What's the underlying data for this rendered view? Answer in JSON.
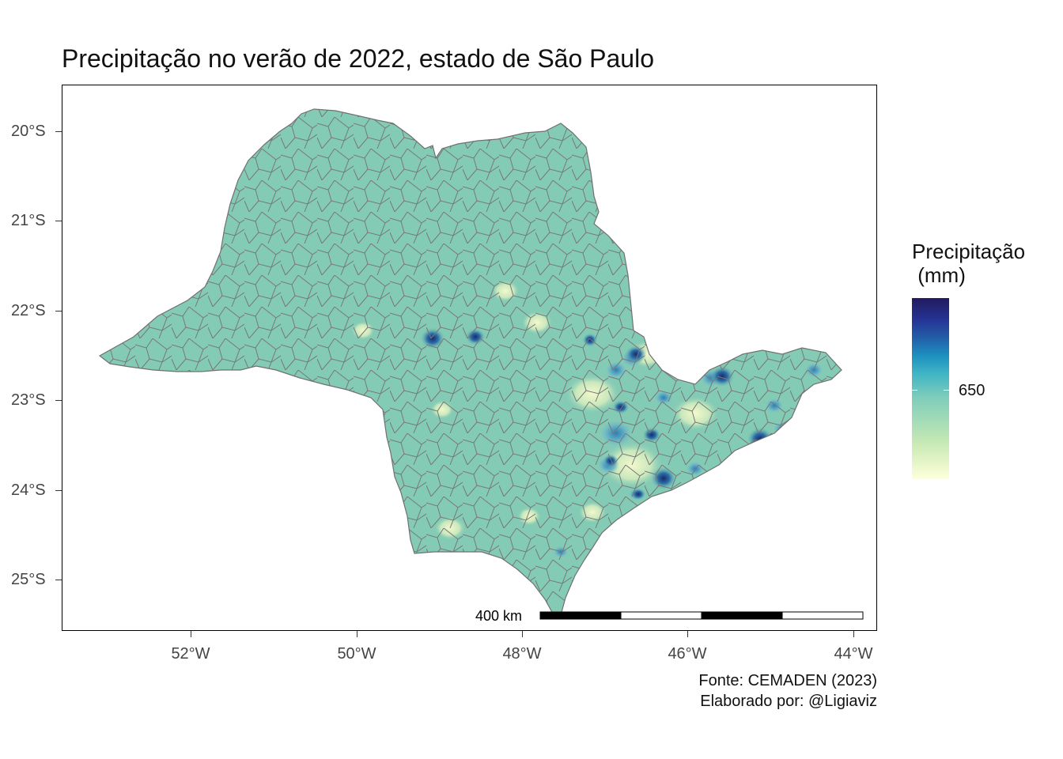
{
  "title": "Precipitação no verão de 2022, estado de São Paulo",
  "axes": {
    "y_labels": [
      "20°S",
      "21°S",
      "22°S",
      "23°S",
      "24°S",
      "25°S"
    ],
    "x_labels": [
      "52°W",
      "50°W",
      "48°W",
      "46°W",
      "44°W"
    ]
  },
  "legend": {
    "title": "Precipitação\n (mm)",
    "tick_label": "650",
    "colors": [
      "#ffffd9",
      "#c7e9b4",
      "#7fcdbb",
      "#41b6c4",
      "#1d91c0",
      "#225ea8",
      "#253494",
      "#231a5e"
    ]
  },
  "scale_bar": {
    "label": "400 km"
  },
  "caption": {
    "source": "Fonte: CEMADEN (2023)",
    "author": "Elaborado por: @Ligiaviz"
  },
  "map": {
    "fill_color": "#84cbb5",
    "border_color": "#7a7a7a"
  }
}
